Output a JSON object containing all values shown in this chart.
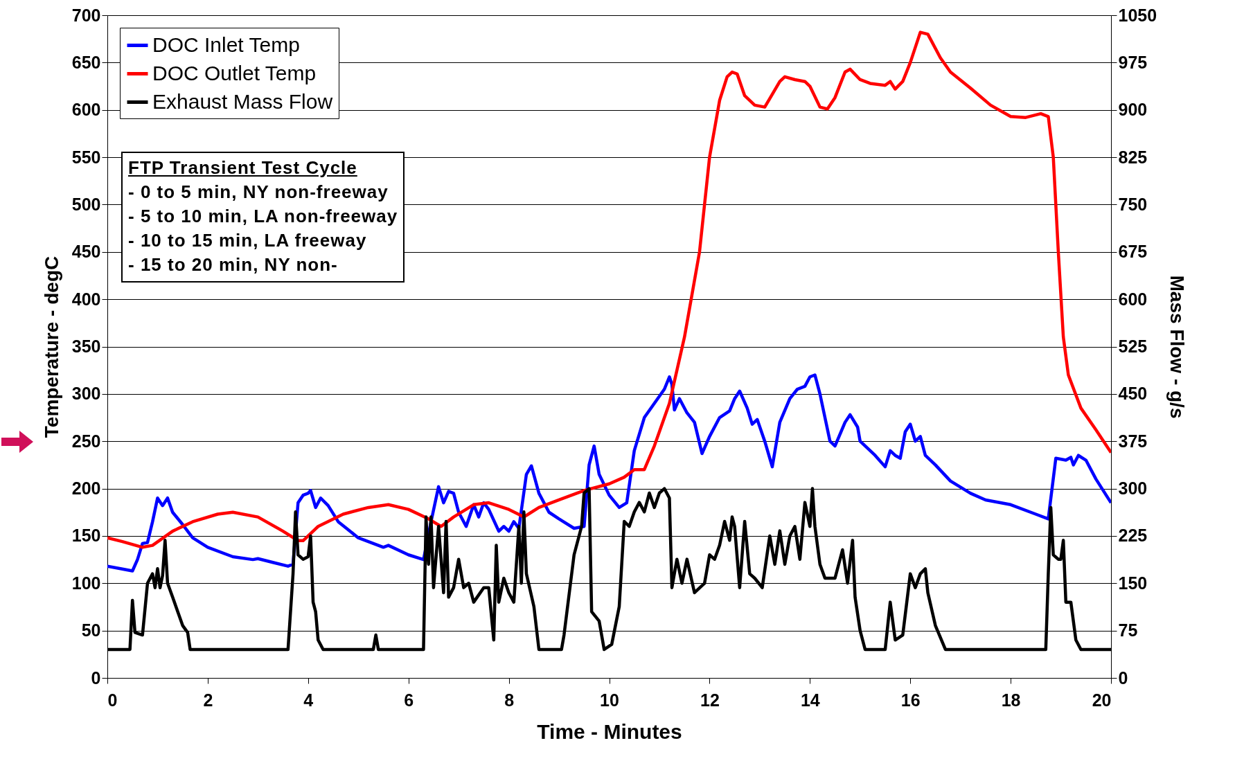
{
  "chart_data": {
    "type": "line",
    "xlabel": "Time - Minutes",
    "ylabel": "Temperature - degC",
    "y2label": "Mass Flow - g/s",
    "xlim": [
      0,
      20
    ],
    "xticks": [
      0,
      2,
      4,
      6,
      8,
      10,
      12,
      14,
      16,
      18,
      20
    ],
    "ylim": [
      0,
      700
    ],
    "yticks": [
      0,
      50,
      100,
      150,
      200,
      250,
      300,
      350,
      400,
      450,
      500,
      550,
      600,
      650,
      700
    ],
    "y2lim": [
      0,
      1050
    ],
    "y2ticks": [
      0,
      75,
      150,
      225,
      300,
      375,
      450,
      525,
      600,
      675,
      750,
      825,
      900,
      975,
      1050
    ],
    "grid": "y",
    "legend": "top left",
    "line_style": "solid",
    "annotations": [
      "FTP Transient Test Cycle",
      "- 0 to 5 min, NY non-freeway",
      "- 5 to 10 min, LA non-freeway",
      "- 10 to 15 min, LA freeway",
      "- 15 to 20 min, NY non-"
    ],
    "series": [
      {
        "name": "DOC Inlet Temp",
        "color": "#0000ff",
        "x": [
          0,
          0.3,
          0.5,
          0.6,
          0.7,
          0.8,
          0.9,
          1.0,
          1.1,
          1.2,
          1.3,
          1.5,
          1.7,
          2.0,
          2.5,
          2.9,
          3.0,
          3.3,
          3.6,
          3.7,
          3.8,
          3.9,
          4.0,
          4.05,
          4.15,
          4.25,
          4.4,
          4.6,
          5.0,
          5.5,
          5.6,
          6.0,
          6.3,
          6.45,
          6.6,
          6.7,
          6.8,
          6.9,
          7.0,
          7.15,
          7.3,
          7.4,
          7.5,
          7.6,
          7.8,
          7.9,
          8.0,
          8.1,
          8.2,
          8.35,
          8.45,
          8.6,
          8.8,
          9.0,
          9.3,
          9.5,
          9.6,
          9.7,
          9.8,
          10.0,
          10.2,
          10.35,
          10.5,
          10.7,
          10.9,
          11.1,
          11.2,
          11.25,
          11.3,
          11.4,
          11.55,
          11.7,
          11.85,
          12.0,
          12.2,
          12.4,
          12.5,
          12.6,
          12.75,
          12.85,
          12.95,
          13.1,
          13.25,
          13.4,
          13.6,
          13.75,
          13.9,
          14.0,
          14.1,
          14.2,
          14.4,
          14.5,
          14.7,
          14.8,
          14.95,
          15.0,
          15.3,
          15.5,
          15.6,
          15.7,
          15.8,
          15.9,
          16.0,
          16.1,
          16.2,
          16.3,
          16.5,
          16.8,
          17.2,
          17.5,
          18.0,
          18.5,
          18.75,
          18.9,
          19.1,
          19.2,
          19.25,
          19.35,
          19.5,
          19.7,
          20.0
        ],
        "values": [
          118,
          115,
          113,
          125,
          142,
          143,
          165,
          190,
          182,
          190,
          175,
          162,
          148,
          138,
          128,
          125,
          126,
          122,
          118,
          120,
          185,
          193,
          195,
          198,
          180,
          190,
          182,
          165,
          148,
          138,
          140,
          130,
          125,
          165,
          202,
          185,
          197,
          195,
          175,
          160,
          183,
          170,
          185,
          178,
          155,
          160,
          155,
          165,
          158,
          215,
          224,
          195,
          175,
          168,
          158,
          160,
          225,
          245,
          215,
          193,
          180,
          185,
          240,
          275,
          290,
          305,
          318,
          310,
          283,
          295,
          280,
          270,
          237,
          255,
          275,
          282,
          295,
          303,
          285,
          268,
          273,
          250,
          223,
          270,
          295,
          305,
          308,
          318,
          320,
          300,
          250,
          245,
          270,
          278,
          265,
          250,
          235,
          223,
          240,
          235,
          232,
          260,
          268,
          250,
          255,
          235,
          225,
          208,
          195,
          188,
          183,
          173,
          168,
          232,
          230,
          233,
          225,
          235,
          230,
          210,
          185
        ]
      },
      {
        "name": "DOC Outlet Temp",
        "color": "#ff0000",
        "x": [
          0,
          0.3,
          0.7,
          0.9,
          1.3,
          1.7,
          2.2,
          2.5,
          3.0,
          3.5,
          3.8,
          3.9,
          4.2,
          4.7,
          5.2,
          5.6,
          6.0,
          6.4,
          6.65,
          6.9,
          7.3,
          7.6,
          8.0,
          8.3,
          8.6,
          9.0,
          9.5,
          10.0,
          10.3,
          10.5,
          10.7,
          10.9,
          11.2,
          11.5,
          11.8,
          12.0,
          12.2,
          12.35,
          12.45,
          12.55,
          12.7,
          12.9,
          13.1,
          13.2,
          13.4,
          13.5,
          13.7,
          13.9,
          14.0,
          14.2,
          14.35,
          14.5,
          14.7,
          14.8,
          15.0,
          15.2,
          15.5,
          15.6,
          15.7,
          15.85,
          16.0,
          16.2,
          16.35,
          16.6,
          16.8,
          17.2,
          17.6,
          18.0,
          18.3,
          18.6,
          18.75,
          18.85,
          18.95,
          19.05,
          19.15,
          19.4,
          19.7,
          20.0
        ],
        "values": [
          148,
          144,
          138,
          140,
          155,
          165,
          173,
          175,
          170,
          155,
          145,
          145,
          160,
          173,
          180,
          183,
          178,
          168,
          160,
          170,
          183,
          185,
          178,
          170,
          180,
          188,
          198,
          205,
          212,
          220,
          220,
          245,
          290,
          360,
          450,
          550,
          610,
          635,
          640,
          638,
          615,
          605,
          603,
          612,
          630,
          635,
          632,
          630,
          625,
          603,
          601,
          613,
          640,
          643,
          632,
          628,
          626,
          630,
          622,
          630,
          650,
          682,
          680,
          655,
          640,
          623,
          605,
          593,
          592,
          596,
          593,
          550,
          450,
          360,
          320,
          285,
          262,
          238
        ]
      },
      {
        "name": "Exhaust Mass Flow",
        "color": "#000000",
        "axis": "y2",
        "x": [
          0,
          0.45,
          0.5,
          0.55,
          0.7,
          0.8,
          0.9,
          0.95,
          1.0,
          1.05,
          1.1,
          1.15,
          1.2,
          1.3,
          1.5,
          1.6,
          1.65,
          3.6,
          3.7,
          3.75,
          3.8,
          3.9,
          4.0,
          4.05,
          4.1,
          4.15,
          4.2,
          4.3,
          5.3,
          5.35,
          5.4,
          6.3,
          6.35,
          6.4,
          6.45,
          6.5,
          6.6,
          6.7,
          6.75,
          6.8,
          6.9,
          7.0,
          7.1,
          7.2,
          7.3,
          7.5,
          7.6,
          7.7,
          7.75,
          7.8,
          7.9,
          8.0,
          8.1,
          8.2,
          8.25,
          8.3,
          8.35,
          8.5,
          8.6,
          9.05,
          9.1,
          9.3,
          9.45,
          9.5,
          9.6,
          9.65,
          9.8,
          9.9,
          10.05,
          10.2,
          10.3,
          10.4,
          10.5,
          10.6,
          10.7,
          10.8,
          10.9,
          11.0,
          11.1,
          11.2,
          11.25,
          11.35,
          11.45,
          11.55,
          11.7,
          11.9,
          12.0,
          12.1,
          12.2,
          12.3,
          12.4,
          12.45,
          12.5,
          12.6,
          12.7,
          12.8,
          12.9,
          13.05,
          13.2,
          13.3,
          13.4,
          13.5,
          13.6,
          13.7,
          13.8,
          13.9,
          14.0,
          14.05,
          14.1,
          14.2,
          14.3,
          14.5,
          14.65,
          14.75,
          14.85,
          14.9,
          15.0,
          15.1,
          15.5,
          15.6,
          15.7,
          15.85,
          16.0,
          16.1,
          16.2,
          16.3,
          16.35,
          16.5,
          16.7,
          18.7,
          18.75,
          18.8,
          18.85,
          18.95,
          19.0,
          19.05,
          19.1,
          19.2,
          19.3,
          19.4,
          20
        ],
        "values": [
          45,
          45,
          123,
          72,
          68,
          150,
          165,
          143,
          173,
          143,
          162,
          218,
          150,
          128,
          83,
          72,
          45,
          45,
          165,
          263,
          195,
          188,
          192,
          225,
          120,
          105,
          60,
          45,
          45,
          68,
          45,
          45,
          255,
          180,
          255,
          143,
          240,
          135,
          248,
          128,
          143,
          188,
          143,
          150,
          120,
          143,
          143,
          60,
          210,
          120,
          158,
          135,
          120,
          240,
          150,
          263,
          165,
          113,
          45,
          45,
          68,
          195,
          240,
          293,
          300,
          105,
          90,
          45,
          53,
          113,
          248,
          240,
          263,
          278,
          263,
          293,
          270,
          293,
          300,
          285,
          143,
          188,
          150,
          188,
          135,
          150,
          195,
          188,
          210,
          248,
          218,
          255,
          240,
          143,
          248,
          165,
          158,
          143,
          225,
          180,
          233,
          180,
          225,
          240,
          188,
          278,
          240,
          300,
          240,
          180,
          158,
          158,
          203,
          150,
          218,
          128,
          75,
          45,
          45,
          120,
          60,
          68,
          165,
          143,
          165,
          173,
          135,
          83,
          45,
          45,
          165,
          270,
          195,
          188,
          188,
          218,
          120,
          120,
          60,
          45,
          45
        ]
      }
    ]
  }
}
